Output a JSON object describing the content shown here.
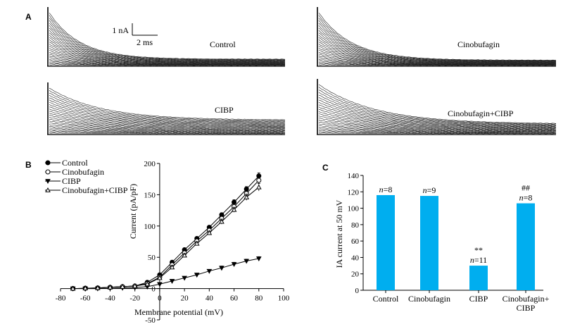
{
  "panel_a": {
    "letter": "A",
    "scale_bar": {
      "current": "1 nA",
      "time": "2 ms"
    },
    "traces": [
      {
        "label": "Control"
      },
      {
        "label": "Cinobufagin"
      },
      {
        "label": "CIBP"
      },
      {
        "label": "Cinobufagin+CIBP"
      }
    ]
  },
  "panel_b": {
    "letter": "B"
  },
  "panel_c": {
    "letter": "C"
  },
  "chart_data": [
    {
      "type": "line",
      "panel": "B",
      "xlabel": "Membrane potential (mV)",
      "ylabel": "Current (pA/pF)",
      "xlim": [
        -80,
        100
      ],
      "ylim": [
        -50,
        200
      ],
      "x_ticks": [
        -80,
        -60,
        -40,
        -20,
        0,
        20,
        40,
        60,
        80,
        100
      ],
      "y_ticks": [
        -50,
        0,
        50,
        100,
        150,
        200
      ],
      "x_tick_labels": [
        "-80",
        "-60",
        "-40",
        "-20",
        "0",
        "20",
        "40",
        "60",
        "80",
        "100"
      ],
      "y_tick_labels": [
        "-50",
        "0",
        "50",
        "100",
        "150",
        "200"
      ],
      "legend_position": "top-left",
      "x": [
        -70,
        -60,
        -50,
        -40,
        -30,
        -20,
        -10,
        0,
        10,
        20,
        30,
        40,
        50,
        60,
        70,
        80
      ],
      "series": [
        {
          "name": "Control",
          "marker": "filled-circle",
          "values": [
            0,
            0.5,
            1,
            2,
            3,
            4,
            10,
            22,
            42,
            62,
            80,
            98,
            118,
            138,
            159,
            180
          ],
          "errors": [
            0,
            0,
            0,
            0,
            0,
            1,
            1,
            2,
            3,
            3,
            3,
            3,
            3,
            4,
            4,
            5
          ]
        },
        {
          "name": "Cinobufagin",
          "marker": "open-circle",
          "values": [
            0,
            0.5,
            1,
            2,
            3,
            4,
            8,
            18,
            38,
            57,
            76,
            93,
            112,
            131,
            152,
            173
          ],
          "errors": [
            0,
            0,
            0,
            0,
            0,
            1,
            1,
            2,
            3,
            3,
            3,
            3,
            3,
            4,
            4,
            5
          ]
        },
        {
          "name": "CIBP",
          "marker": "filled-triangle-down",
          "values": [
            0,
            0,
            0,
            0.5,
            1,
            1.5,
            3,
            7,
            12,
            17,
            22,
            28,
            33,
            39,
            44,
            48
          ],
          "errors": [
            0,
            0,
            0,
            0,
            0,
            0,
            1,
            1,
            2,
            2,
            2,
            2,
            3,
            3,
            3,
            3
          ]
        },
        {
          "name": "Cinobufagin+CIBP",
          "marker": "open-triangle-up",
          "values": [
            0,
            0.5,
            1,
            2,
            3,
            4,
            7,
            17,
            34,
            53,
            72,
            89,
            107,
            126,
            146,
            162
          ],
          "errors": [
            0,
            0,
            0,
            0,
            0,
            1,
            1,
            2,
            3,
            3,
            3,
            3,
            4,
            4,
            5,
            6
          ]
        }
      ]
    },
    {
      "type": "bar",
      "panel": "C",
      "ylabel": "IA current at 50 mV",
      "ylim": [
        0,
        140
      ],
      "y_ticks": [
        0,
        20,
        40,
        60,
        80,
        100,
        120,
        140
      ],
      "y_tick_labels": [
        "0",
        "20",
        "40",
        "60",
        "80",
        "100",
        "120",
        "140"
      ],
      "categories": [
        "Control",
        "Cinobufagin",
        "CIBP",
        "Cinobufagin+\nCIBP"
      ],
      "category_lines": [
        [
          "Control"
        ],
        [
          "Cinobufagin"
        ],
        [
          "CIBP"
        ],
        [
          "Cinobufagin+",
          "CIBP"
        ]
      ],
      "values": [
        116,
        115,
        30,
        106
      ],
      "n_labels": [
        "n=8",
        "n=9",
        "n=11",
        "n=8"
      ],
      "n_prefix": "n",
      "n_values": [
        "=8",
        "=9",
        "=11",
        "=8"
      ],
      "significance": [
        "",
        "",
        "**",
        "##"
      ],
      "bar_color": "#00aeef"
    }
  ]
}
